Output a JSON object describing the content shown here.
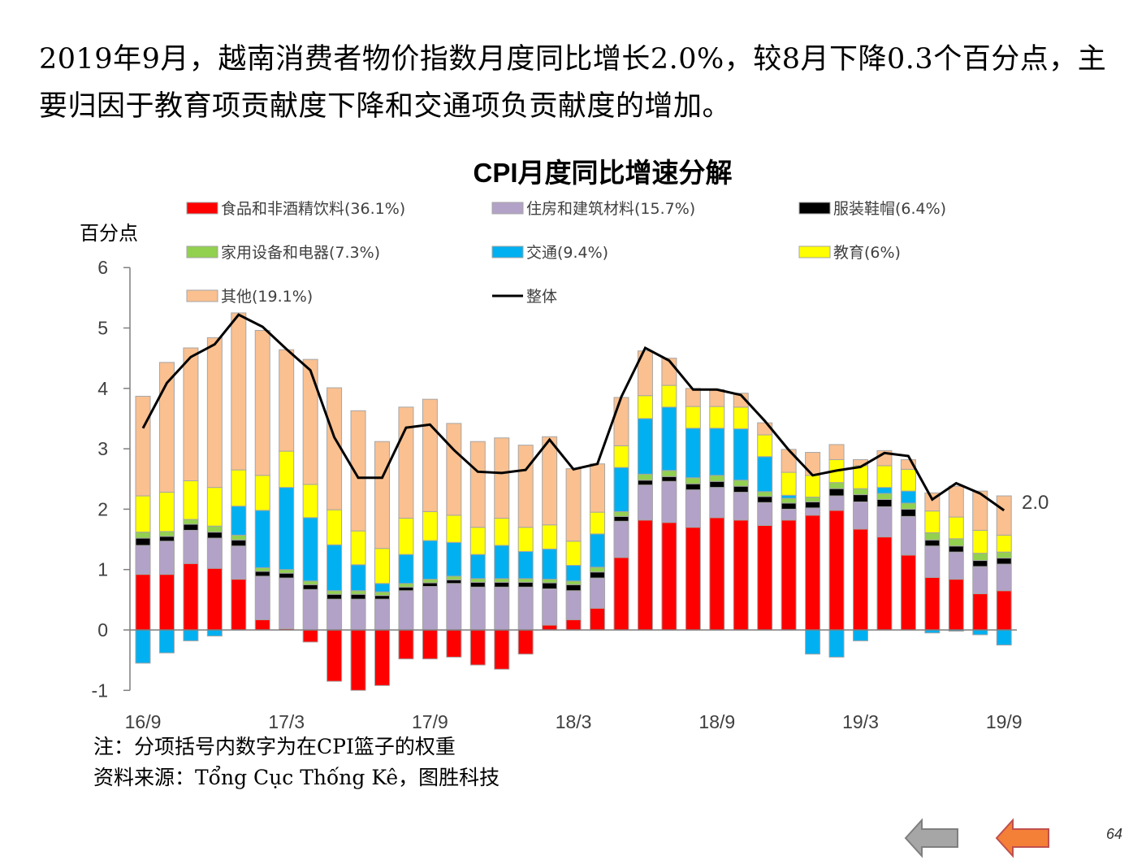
{
  "intro_text": "2019年9月，越南消费者物价指数月度同比增长2.0%，较8月下降0.3个百分点，主要归因于教育项贡献度下降和交通项负贡献度的增加。",
  "chart_data": {
    "type": "bar",
    "stacked": true,
    "title": "CPI月度同比增速分解",
    "ylabel": "百分点",
    "ylim": [
      -1,
      6
    ],
    "yticks": [
      -1,
      0,
      1,
      2,
      3,
      4,
      5,
      6
    ],
    "categories": [
      "16/9",
      "16/10",
      "16/11",
      "16/12",
      "17/1",
      "17/2",
      "17/3",
      "17/4",
      "17/5",
      "17/6",
      "17/7",
      "17/8",
      "17/9",
      "17/10",
      "17/11",
      "17/12",
      "18/1",
      "18/2",
      "18/3",
      "18/4",
      "18/5",
      "18/6",
      "18/7",
      "18/8",
      "18/9",
      "18/10",
      "18/11",
      "18/12",
      "19/1",
      "19/2",
      "19/3",
      "19/4",
      "19/5",
      "19/6",
      "19/7",
      "19/8",
      "19/9"
    ],
    "xtick_labels": [
      "16/9",
      "17/3",
      "17/9",
      "18/3",
      "18/9",
      "19/3",
      "19/9"
    ],
    "series": [
      {
        "name": "食品和非酒精饮料(36.1%)",
        "color": "#ff0000",
        "values": [
          0.92,
          0.92,
          1.1,
          1.02,
          0.84,
          0.17,
          0.02,
          -0.2,
          -0.85,
          -1.0,
          -0.92,
          -0.48,
          -0.48,
          -0.45,
          -0.58,
          -0.65,
          -0.4,
          0.08,
          0.17,
          0.36,
          1.2,
          1.82,
          1.78,
          1.7,
          1.86,
          1.82,
          1.73,
          1.82,
          1.9,
          1.98,
          1.67,
          1.54,
          1.24,
          0.87,
          0.84,
          0.6,
          0.65
        ]
      },
      {
        "name": "住房和建筑材料(15.7%)",
        "color": "#b3a2c7",
        "values": [
          0.48,
          0.55,
          0.55,
          0.5,
          0.55,
          0.72,
          0.84,
          0.67,
          0.51,
          0.51,
          0.51,
          0.65,
          0.72,
          0.77,
          0.71,
          0.71,
          0.71,
          0.6,
          0.48,
          0.5,
          0.6,
          0.58,
          0.68,
          0.62,
          0.5,
          0.46,
          0.38,
          0.18,
          0.12,
          0.24,
          0.45,
          0.5,
          0.64,
          0.52,
          0.45,
          0.45,
          0.44
        ]
      },
      {
        "name": "服装鞋帽(6.4%)",
        "color": "#000000",
        "values": [
          0.12,
          0.08,
          0.1,
          0.1,
          0.1,
          0.08,
          0.08,
          0.08,
          0.08,
          0.08,
          0.06,
          0.06,
          0.06,
          0.06,
          0.08,
          0.08,
          0.08,
          0.1,
          0.1,
          0.1,
          0.08,
          0.08,
          0.08,
          0.1,
          0.1,
          0.1,
          0.1,
          0.1,
          0.1,
          0.12,
          0.12,
          0.12,
          0.12,
          0.1,
          0.1,
          0.1,
          0.1
        ]
      },
      {
        "name": "家用设备和电器(7.3%)",
        "color": "#92d050",
        "values": [
          0.1,
          0.08,
          0.08,
          0.1,
          0.08,
          0.06,
          0.06,
          0.06,
          0.06,
          0.06,
          0.06,
          0.06,
          0.06,
          0.06,
          0.06,
          0.06,
          0.06,
          0.06,
          0.06,
          0.08,
          0.08,
          0.1,
          0.1,
          0.1,
          0.1,
          0.1,
          0.08,
          0.08,
          0.08,
          0.1,
          0.1,
          0.1,
          0.1,
          0.12,
          0.12,
          0.12,
          0.1
        ]
      },
      {
        "name": "交通(9.4%)",
        "color": "#00b0f0",
        "values": [
          -0.55,
          -0.38,
          -0.18,
          -0.1,
          0.48,
          0.95,
          1.36,
          1.05,
          0.76,
          0.43,
          0.14,
          0.48,
          0.64,
          0.56,
          0.4,
          0.55,
          0.45,
          0.5,
          0.26,
          0.55,
          0.73,
          0.92,
          1.05,
          0.82,
          0.78,
          0.85,
          0.58,
          0.05,
          -0.4,
          -0.45,
          -0.18,
          0.1,
          0.2,
          -0.05,
          -0.02,
          -0.08,
          -0.25
        ]
      },
      {
        "name": "教育(6%)",
        "color": "#ffff00",
        "values": [
          0.6,
          0.65,
          0.64,
          0.64,
          0.6,
          0.58,
          0.6,
          0.55,
          0.58,
          0.56,
          0.58,
          0.6,
          0.48,
          0.45,
          0.45,
          0.45,
          0.4,
          0.4,
          0.4,
          0.36,
          0.36,
          0.38,
          0.36,
          0.36,
          0.36,
          0.36,
          0.36,
          0.38,
          0.36,
          0.38,
          0.38,
          0.36,
          0.36,
          0.36,
          0.36,
          0.38,
          0.28
        ]
      },
      {
        "name": "其他(19.1%)",
        "color": "#fac090",
        "values": [
          1.65,
          2.15,
          2.2,
          2.48,
          2.6,
          2.4,
          1.68,
          2.07,
          2.02,
          1.99,
          1.77,
          1.84,
          1.86,
          1.52,
          1.42,
          1.33,
          1.36,
          1.46,
          1.2,
          0.8,
          0.8,
          0.74,
          0.45,
          0.3,
          0.28,
          0.23,
          0.2,
          0.38,
          0.38,
          0.25,
          0.1,
          0.25,
          0.16,
          0.3,
          0.51,
          0.65,
          0.65
        ]
      }
    ],
    "line": {
      "name": "整体",
      "color": "#000000",
      "values": [
        3.34,
        4.09,
        4.52,
        4.73,
        5.22,
        5.02,
        4.65,
        4.3,
        3.19,
        2.52,
        2.52,
        3.35,
        3.4,
        2.98,
        2.62,
        2.6,
        2.65,
        3.15,
        2.66,
        2.75,
        3.86,
        4.67,
        4.46,
        3.98,
        3.98,
        3.89,
        3.46,
        2.98,
        2.56,
        2.64,
        2.7,
        2.93,
        2.88,
        2.16,
        2.43,
        2.26,
        1.98
      ]
    },
    "end_label": "2.0"
  },
  "notes": {
    "line1": "注：分项括号内数字为在CPI篮子的权重",
    "line2": "资料来源：Tổng Cục Thống Kê，图胜科技"
  },
  "nav": {
    "prev_icon": "left-arrow-icon",
    "next_icon": "left-arrow-icon",
    "prev_color": "#a6a6a6",
    "next_color": "#f47f37"
  },
  "page_number": "64"
}
